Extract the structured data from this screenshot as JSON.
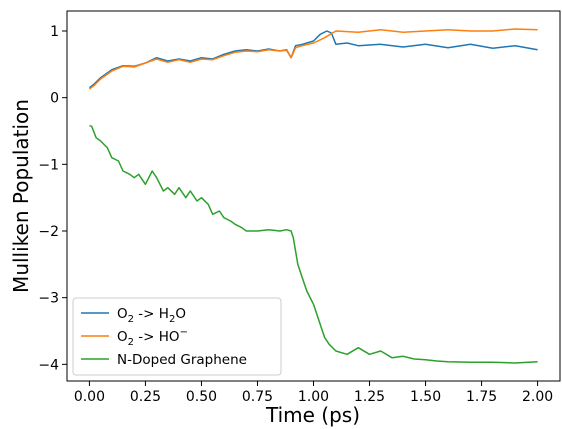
{
  "chart_data": {
    "type": "line",
    "xlabel": "Time (ps)",
    "ylabel": "Mulliken Population",
    "xlim": [
      -0.1,
      2.1
    ],
    "ylim": [
      -4.25,
      1.3
    ],
    "x_ticks": [
      0.0,
      0.25,
      0.5,
      0.75,
      1.0,
      1.25,
      1.5,
      1.75,
      2.0
    ],
    "x_tick_labels": [
      "0.00",
      "0.25",
      "0.50",
      "0.75",
      "1.00",
      "1.25",
      "1.50",
      "1.75",
      "2.00"
    ],
    "y_ticks": [
      -4,
      -3,
      -2,
      -1,
      0,
      1
    ],
    "y_tick_labels": [
      "−4",
      "−3",
      "−2",
      "−1",
      "0",
      "1"
    ],
    "grid": false,
    "legend_position": "lower-left",
    "series": [
      {
        "name": "O2 -> H2O",
        "legend_main": "O",
        "legend_sub": "2",
        "legend_mid": " -> H",
        "legend_sub2": "2",
        "legend_tail": "O",
        "color": "#1f77b4",
        "x": [
          0.0,
          0.02,
          0.05,
          0.1,
          0.15,
          0.2,
          0.25,
          0.3,
          0.35,
          0.4,
          0.45,
          0.5,
          0.55,
          0.6,
          0.65,
          0.7,
          0.75,
          0.8,
          0.85,
          0.88,
          0.9,
          0.92,
          0.95,
          1.0,
          1.03,
          1.06,
          1.08,
          1.1,
          1.15,
          1.2,
          1.3,
          1.4,
          1.5,
          1.6,
          1.7,
          1.8,
          1.9,
          2.0
        ],
        "y": [
          0.15,
          0.2,
          0.3,
          0.42,
          0.48,
          0.47,
          0.52,
          0.6,
          0.55,
          0.58,
          0.55,
          0.6,
          0.58,
          0.65,
          0.7,
          0.72,
          0.7,
          0.73,
          0.7,
          0.72,
          0.6,
          0.78,
          0.8,
          0.85,
          0.95,
          1.0,
          0.97,
          0.8,
          0.82,
          0.78,
          0.8,
          0.76,
          0.8,
          0.75,
          0.8,
          0.74,
          0.78,
          0.72
        ]
      },
      {
        "name": "O2 -> HO−",
        "legend_main": "O",
        "legend_sub": "2",
        "legend_mid": " -> HO",
        "legend_sup": "−",
        "color": "#ff7f0e",
        "x": [
          0.0,
          0.02,
          0.05,
          0.1,
          0.15,
          0.2,
          0.25,
          0.3,
          0.35,
          0.4,
          0.45,
          0.5,
          0.55,
          0.6,
          0.65,
          0.7,
          0.75,
          0.8,
          0.85,
          0.88,
          0.9,
          0.92,
          0.95,
          1.0,
          1.05,
          1.1,
          1.2,
          1.3,
          1.4,
          1.5,
          1.6,
          1.7,
          1.8,
          1.9,
          2.0
        ],
        "y": [
          0.13,
          0.18,
          0.28,
          0.4,
          0.47,
          0.46,
          0.52,
          0.58,
          0.53,
          0.57,
          0.53,
          0.58,
          0.57,
          0.63,
          0.68,
          0.7,
          0.69,
          0.72,
          0.7,
          0.71,
          0.6,
          0.75,
          0.78,
          0.82,
          0.9,
          1.0,
          0.98,
          1.02,
          0.98,
          1.0,
          1.02,
          1.0,
          1.0,
          1.03,
          1.02
        ]
      },
      {
        "name": "N-Doped Graphene",
        "legend_main": "N-Doped Graphene",
        "color": "#2ca02c",
        "x": [
          0.0,
          0.01,
          0.03,
          0.05,
          0.08,
          0.1,
          0.13,
          0.15,
          0.18,
          0.2,
          0.22,
          0.25,
          0.28,
          0.3,
          0.33,
          0.35,
          0.38,
          0.4,
          0.43,
          0.45,
          0.48,
          0.5,
          0.53,
          0.55,
          0.58,
          0.6,
          0.63,
          0.65,
          0.68,
          0.7,
          0.75,
          0.8,
          0.85,
          0.88,
          0.9,
          0.91,
          0.93,
          0.95,
          0.97,
          1.0,
          1.02,
          1.05,
          1.07,
          1.1,
          1.15,
          1.2,
          1.25,
          1.3,
          1.35,
          1.4,
          1.45,
          1.5,
          1.55,
          1.6,
          1.7,
          1.8,
          1.9,
          2.0
        ],
        "y": [
          -0.42,
          -0.43,
          -0.6,
          -0.65,
          -0.75,
          -0.9,
          -0.95,
          -1.1,
          -1.15,
          -1.2,
          -1.15,
          -1.3,
          -1.1,
          -1.2,
          -1.4,
          -1.35,
          -1.45,
          -1.35,
          -1.5,
          -1.4,
          -1.55,
          -1.5,
          -1.6,
          -1.75,
          -1.7,
          -1.8,
          -1.85,
          -1.9,
          -1.95,
          -2.0,
          -2.0,
          -1.98,
          -2.0,
          -1.98,
          -2.0,
          -2.1,
          -2.5,
          -2.7,
          -2.9,
          -3.1,
          -3.3,
          -3.6,
          -3.7,
          -3.8,
          -3.85,
          -3.75,
          -3.85,
          -3.8,
          -3.9,
          -3.88,
          -3.92,
          -3.93,
          -3.95,
          -3.96,
          -3.97,
          -3.97,
          -3.98,
          -3.96
        ]
      }
    ]
  }
}
